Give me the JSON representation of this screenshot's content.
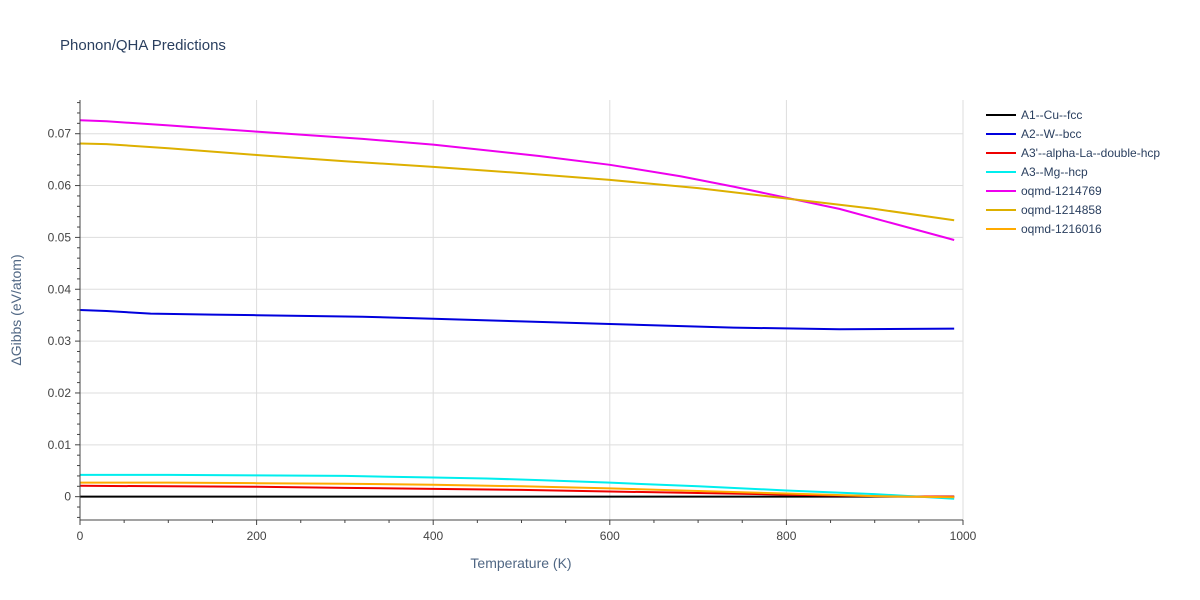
{
  "chart_data": {
    "type": "line",
    "title": "Phonon/QHA Predictions",
    "xlabel": "Temperature (K)",
    "ylabel": "ΔGibbs (eV/atom)",
    "xlim": [
      0,
      1000
    ],
    "ylim": [
      -0.0045,
      0.0765
    ],
    "x_ticks": [
      0,
      200,
      400,
      600,
      800,
      1000
    ],
    "x_tick_labels": [
      "0",
      "200",
      "400",
      "600",
      "800",
      "1000"
    ],
    "y_ticks": [
      0,
      0.01,
      0.02,
      0.03,
      0.04,
      0.05,
      0.06,
      0.07
    ],
    "y_tick_labels": [
      "0",
      "0.01",
      "0.02",
      "0.03",
      "0.04",
      "0.05",
      "0.06",
      "0.07"
    ],
    "grid": true,
    "legend_position": "top-right",
    "series": [
      {
        "name": "A1--Cu--fcc",
        "color": "#000000",
        "x": [
          0,
          990
        ],
        "y": [
          0.0,
          0.0
        ]
      },
      {
        "name": "A2--W--bcc",
        "color": "#0000dd",
        "x": [
          0,
          30,
          80,
          150,
          200,
          320,
          400,
          500,
          600,
          740,
          860,
          990
        ],
        "y": [
          0.036,
          0.0358,
          0.0353,
          0.0351,
          0.035,
          0.0347,
          0.0343,
          0.0338,
          0.0333,
          0.0326,
          0.0323,
          0.0324
        ]
      },
      {
        "name": "A3'--alpha-La--double-hcp",
        "color": "#ee0000",
        "x": [
          0,
          100,
          200,
          300,
          400,
          500,
          600,
          700,
          800,
          900,
          990
        ],
        "y": [
          0.0021,
          0.002,
          0.0019,
          0.0017,
          0.0015,
          0.0013,
          0.001,
          0.0007,
          0.0004,
          0.0001,
          0.0
        ]
      },
      {
        "name": "A3--Mg--hcp",
        "color": "#00eeee",
        "x": [
          0,
          100,
          200,
          300,
          400,
          460,
          520,
          600,
          700,
          800,
          900,
          990
        ],
        "y": [
          0.0042,
          0.0042,
          0.0041,
          0.004,
          0.0037,
          0.0035,
          0.0032,
          0.0027,
          0.002,
          0.0012,
          0.0005,
          -0.0004
        ]
      },
      {
        "name": "oqmd-1214769",
        "color": "#ee00ee",
        "x": [
          0,
          30,
          100,
          200,
          320,
          400,
          520,
          600,
          680,
          740,
          860,
          990
        ],
        "y": [
          0.0726,
          0.0724,
          0.0716,
          0.0704,
          0.069,
          0.0679,
          0.0657,
          0.064,
          0.0618,
          0.0598,
          0.0555,
          0.0495
        ]
      },
      {
        "name": "oqmd-1214858",
        "color": "#ddb000",
        "x": [
          0,
          30,
          100,
          200,
          300,
          400,
          500,
          600,
          700,
          800,
          900,
          990
        ],
        "y": [
          0.0681,
          0.068,
          0.0672,
          0.0659,
          0.0647,
          0.0636,
          0.0624,
          0.0611,
          0.0595,
          0.0575,
          0.0555,
          0.0533
        ]
      },
      {
        "name": "oqmd-1216016",
        "color": "#ffaa00",
        "x": [
          0,
          100,
          200,
          300,
          400,
          500,
          600,
          700,
          800,
          900,
          990
        ],
        "y": [
          0.0027,
          0.0027,
          0.0026,
          0.0025,
          0.0023,
          0.002,
          0.0016,
          0.0011,
          0.0006,
          0.0001,
          -0.0001
        ]
      }
    ]
  }
}
